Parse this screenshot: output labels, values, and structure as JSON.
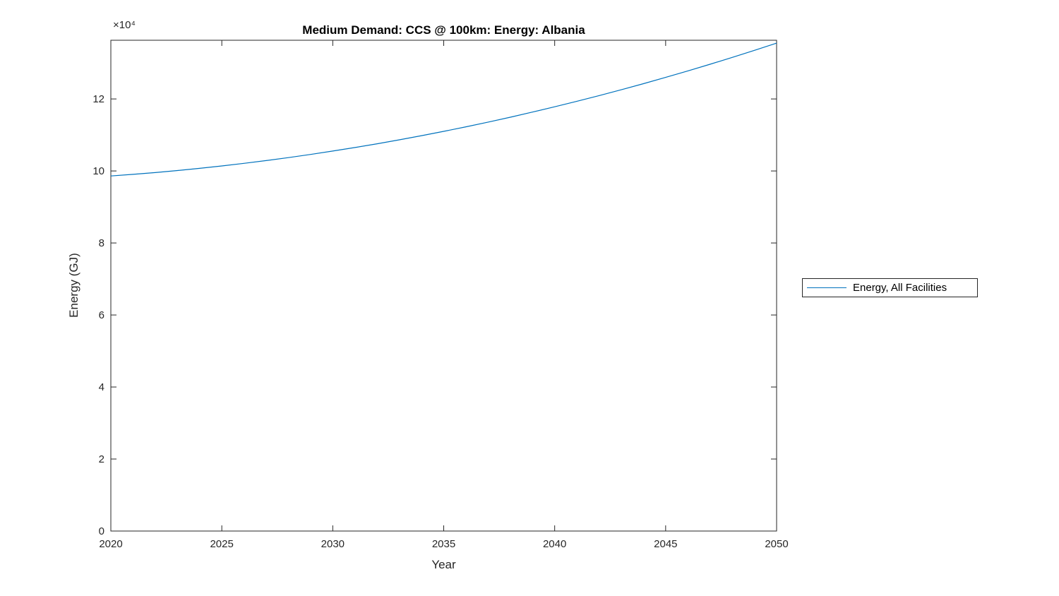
{
  "colors": {
    "line": "#0072BD",
    "axes": "#262626",
    "background": "#ffffff",
    "title": "#000000"
  },
  "chart_data": {
    "type": "line",
    "title": "Medium Demand: CCS @ 100km: Energy: Albania",
    "xlabel": "Year",
    "ylabel": "Energy (GJ)",
    "y_exponent_label": "×10⁴",
    "grid": false,
    "xlim": [
      2020,
      2050
    ],
    "ylim": [
      0,
      136300
    ],
    "x_ticks": [
      2020,
      2025,
      2030,
      2035,
      2040,
      2045,
      2050
    ],
    "y_ticks": [
      0,
      2,
      4,
      6,
      8,
      10,
      12
    ],
    "y_tick_scale": 10000,
    "legend": {
      "position": "right-outside",
      "entries": [
        "Energy, All Facilities"
      ]
    },
    "series": [
      {
        "name": "Energy, All Facilities",
        "color": "#0072BD",
        "x": [
          2020,
          2021,
          2022,
          2023,
          2024,
          2025,
          2026,
          2027,
          2028,
          2029,
          2030,
          2031,
          2032,
          2033,
          2034,
          2035,
          2036,
          2037,
          2038,
          2039,
          2040,
          2041,
          2042,
          2043,
          2044,
          2045,
          2046,
          2047,
          2048,
          2049,
          2050
        ],
        "values": [
          98600,
          99050,
          99554,
          100112,
          100723,
          101388,
          102108,
          102881,
          103707,
          104588,
          105522,
          106510,
          107552,
          108647,
          109796,
          111000,
          112257,
          113567,
          114931,
          116350,
          117822,
          119347,
          120927,
          122560,
          124247,
          125989,
          127783,
          129631,
          131533,
          133490,
          135500
        ]
      }
    ]
  }
}
